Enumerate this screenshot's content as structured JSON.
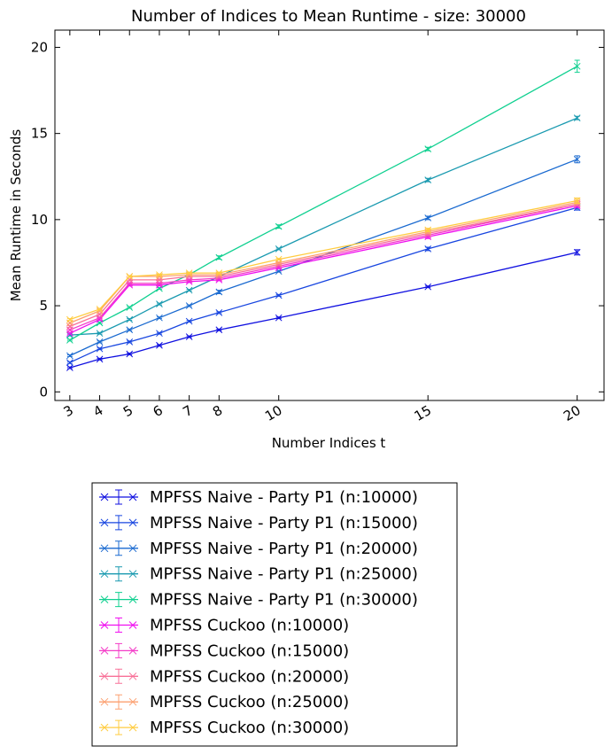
{
  "chart_data": {
    "type": "line",
    "title": "Number of Indices to Mean Runtime - size: 30000",
    "xlabel": "Number Indices t",
    "ylabel": "Mean Runtime in Seconds",
    "x": [
      3,
      4,
      5,
      6,
      7,
      8,
      10,
      15,
      20
    ],
    "x_tick_labels": [
      "3",
      "4",
      "5",
      "6",
      "7",
      "8",
      "10",
      "15",
      "20"
    ],
    "xlim": [
      2.5,
      20.9
    ],
    "ylim": [
      -0.5,
      21
    ],
    "y_ticks": [
      0,
      5,
      10,
      15,
      20
    ],
    "y_tick_labels": [
      "0",
      "5",
      "10",
      "15",
      "20"
    ],
    "grid": false,
    "legend_position": "below plot",
    "marker": "x",
    "error_bars": true,
    "series": [
      {
        "name": "MPFSS Naive - Party P1 (n:10000)",
        "color": "#1010e0",
        "values": [
          1.4,
          1.9,
          2.2,
          2.7,
          3.2,
          3.6,
          4.3,
          6.1,
          8.1
        ],
        "errors": [
          0.05,
          0.05,
          0.05,
          0.05,
          0.05,
          0.05,
          0.05,
          0.05,
          0.15
        ]
      },
      {
        "name": "MPFSS Naive - Party P1 (n:15000)",
        "color": "#1846e0",
        "values": [
          1.7,
          2.5,
          2.9,
          3.4,
          4.1,
          4.6,
          5.6,
          8.3,
          10.7
        ],
        "errors": [
          0.05,
          0.05,
          0.05,
          0.05,
          0.05,
          0.05,
          0.05,
          0.1,
          0.15
        ]
      },
      {
        "name": "MPFSS Naive - Party P1 (n:20000)",
        "color": "#1a6ad0",
        "values": [
          2.1,
          2.9,
          3.6,
          4.3,
          5.0,
          5.8,
          7.0,
          10.1,
          13.5
        ],
        "errors": [
          0.05,
          0.05,
          0.05,
          0.05,
          0.05,
          0.1,
          0.05,
          0.1,
          0.2
        ]
      },
      {
        "name": "MPFSS Naive - Party P1 (n:25000)",
        "color": "#1a9ab0",
        "values": [
          3.3,
          3.4,
          4.2,
          5.1,
          5.9,
          6.7,
          8.3,
          12.3,
          15.9
        ],
        "errors": [
          0.05,
          0.05,
          0.05,
          0.05,
          0.05,
          0.05,
          0.05,
          0.1,
          0.1
        ]
      },
      {
        "name": "MPFSS Naive - Party P1 (n:30000)",
        "color": "#10d090",
        "values": [
          3.0,
          4.0,
          4.9,
          6.0,
          6.8,
          7.8,
          9.6,
          14.1,
          18.9
        ],
        "errors": [
          0.05,
          0.05,
          0.05,
          0.05,
          0.05,
          0.1,
          0.1,
          0.1,
          0.35
        ]
      },
      {
        "name": "MPFSS Cuckoo (n:10000)",
        "color": "#f010f0",
        "values": [
          3.4,
          4.2,
          6.2,
          6.2,
          6.4,
          6.5,
          7.2,
          9.0,
          10.8
        ],
        "errors": [
          0.05,
          0.05,
          0.05,
          0.05,
          0.05,
          0.05,
          0.05,
          0.1,
          0.1
        ]
      },
      {
        "name": "MPFSS Cuckoo (n:15000)",
        "color": "#f43cc8",
        "values": [
          3.6,
          4.3,
          6.3,
          6.3,
          6.5,
          6.6,
          7.3,
          9.1,
          10.9
        ],
        "errors": [
          0.05,
          0.05,
          0.05,
          0.05,
          0.05,
          0.05,
          0.05,
          0.1,
          0.1
        ]
      },
      {
        "name": "MPFSS Cuckoo (n:20000)",
        "color": "#f87098",
        "values": [
          3.8,
          4.5,
          6.5,
          6.5,
          6.7,
          6.7,
          7.4,
          9.2,
          10.9
        ],
        "errors": [
          0.05,
          0.05,
          0.05,
          0.05,
          0.05,
          0.05,
          0.05,
          0.1,
          0.1
        ]
      },
      {
        "name": "MPFSS Cuckoo (n:25000)",
        "color": "#fca070",
        "values": [
          4.0,
          4.7,
          6.7,
          6.7,
          6.8,
          6.8,
          7.5,
          9.3,
          11.0
        ],
        "errors": [
          0.05,
          0.05,
          0.05,
          0.05,
          0.05,
          0.05,
          0.05,
          0.1,
          0.1
        ]
      },
      {
        "name": "MPFSS Cuckoo (n:30000)",
        "color": "#ffcc40",
        "values": [
          4.2,
          4.8,
          6.7,
          6.8,
          6.9,
          6.9,
          7.7,
          9.4,
          11.1
        ],
        "errors": [
          0.05,
          0.05,
          0.05,
          0.05,
          0.05,
          0.05,
          0.05,
          0.1,
          0.15
        ]
      }
    ]
  }
}
